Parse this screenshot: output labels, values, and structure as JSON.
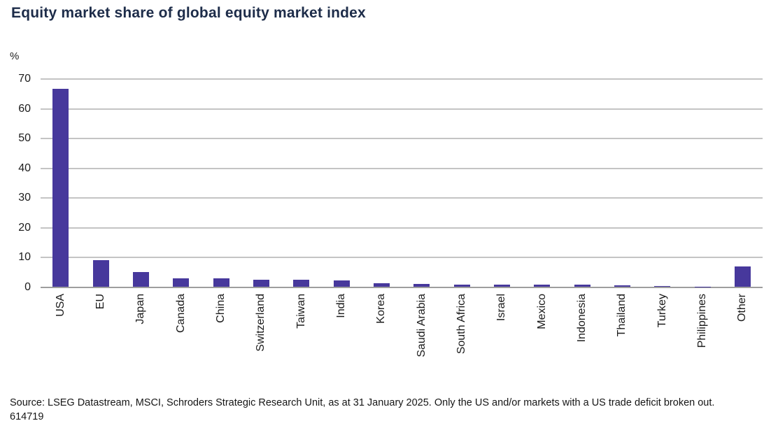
{
  "title": "Equity market share of global equity market index",
  "source_note": "Source: LSEG Datastream, MSCI, Schroders Strategic Research Unit, as at 31 January 2025. Only the US and/or markets with a US trade deficit broken out. 614719",
  "colors": {
    "bar": "#47389c",
    "title_text": "#1d2c49",
    "gridline": "#c4c4c4",
    "zero_axis": "#9e9e9e",
    "tick_text": "#1c1c1c"
  },
  "chart_data": {
    "type": "bar",
    "title": "Equity market share of global equity market index",
    "xlabel": "",
    "ylabel": "%",
    "ylim": [
      0,
      70
    ],
    "y_ticks": [
      0,
      10,
      20,
      30,
      40,
      50,
      60,
      70
    ],
    "grid": true,
    "legend": "none",
    "categories": [
      "USA",
      "EU",
      "Japan",
      "Canada",
      "China",
      "Switzerland",
      "Taiwan",
      "India",
      "Korea",
      "Saudi Arabia",
      "South Africa",
      "Israel",
      "Mexico",
      "Indonesia",
      "Thailand",
      "Turkey",
      "Philippines",
      "Other"
    ],
    "values": [
      66.5,
      8.9,
      5.0,
      2.8,
      2.8,
      2.4,
      2.3,
      2.1,
      1.1,
      0.9,
      0.8,
      0.7,
      0.6,
      0.6,
      0.4,
      0.15,
      0.1,
      6.8
    ]
  }
}
